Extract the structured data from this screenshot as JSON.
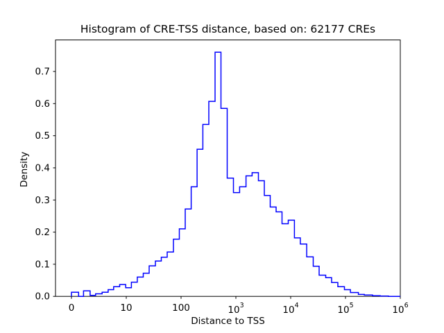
{
  "chart_data": {
    "type": "histogram-step",
    "title": "Histogram of CRE-TSS distance, based on: 62177 CREs",
    "xlabel": "Distance to TSS",
    "ylabel": "Density",
    "x_scale": "symlog",
    "linthresh": 10,
    "xlim": [
      -3,
      1000000
    ],
    "ylim": [
      0,
      0.8
    ],
    "grid": false,
    "legend": null,
    "line_color": "#0000ff",
    "axis_color": "#000000",
    "background_color": "#ffffff",
    "n_samples_in_title": 62177,
    "x_ticks": [
      {
        "label": "0",
        "sup": "",
        "value": 0
      },
      {
        "label": "10",
        "sup": "",
        "value": 10
      },
      {
        "label": "100",
        "sup": "",
        "value": 100
      },
      {
        "label": "10",
        "sup": "3",
        "value": 1000
      },
      {
        "label": "10",
        "sup": "4",
        "value": 10000
      },
      {
        "label": "10",
        "sup": "5",
        "value": 100000
      },
      {
        "label": "10",
        "sup": "6",
        "value": 1000000
      }
    ],
    "y_ticks": [
      {
        "label": "0.0",
        "value": 0.0
      },
      {
        "label": "0.1",
        "value": 0.1
      },
      {
        "label": "0.2",
        "value": 0.2
      },
      {
        "label": "0.3",
        "value": 0.3
      },
      {
        "label": "0.4",
        "value": 0.4
      },
      {
        "label": "0.5",
        "value": 0.5
      },
      {
        "label": "0.6",
        "value": 0.6
      },
      {
        "label": "0.7",
        "value": 0.7
      }
    ],
    "bin_edges": [
      0,
      1.3,
      2.2,
      3.4,
      4.4,
      5.6,
      6.7,
      7.7,
      8.8,
      9.9,
      12.4,
      15.9,
      20.4,
      26.2,
      34,
      43.6,
      55.8,
      72.6,
      93,
      119,
      153,
      196,
      250,
      321,
      417,
      534,
      695,
      903,
      1170,
      1530,
      1980,
      2580,
      3300,
      4230,
      5420,
      6950,
      9030,
      11700,
      15000,
      19600,
      25800,
      33000,
      43600,
      55800,
      72600,
      95700,
      123000,
      172000,
      220000,
      312000,
      429000,
      609000,
      1000000
    ],
    "densities": [
      0.013,
      0,
      0.017,
      0.003,
      0.008,
      0.013,
      0.021,
      0.03,
      0.037,
      0.027,
      0.044,
      0.06,
      0.072,
      0.095,
      0.11,
      0.122,
      0.138,
      0.178,
      0.21,
      0.272,
      0.341,
      0.458,
      0.535,
      0.607,
      0.76,
      0.585,
      0.368,
      0.323,
      0.341,
      0.375,
      0.385,
      0.36,
      0.314,
      0.278,
      0.263,
      0.226,
      0.237,
      0.182,
      0.163,
      0.123,
      0.094,
      0.066,
      0.058,
      0.043,
      0.03,
      0.021,
      0.012,
      0.006,
      0.004,
      0.002,
      0.001,
      0
    ]
  }
}
